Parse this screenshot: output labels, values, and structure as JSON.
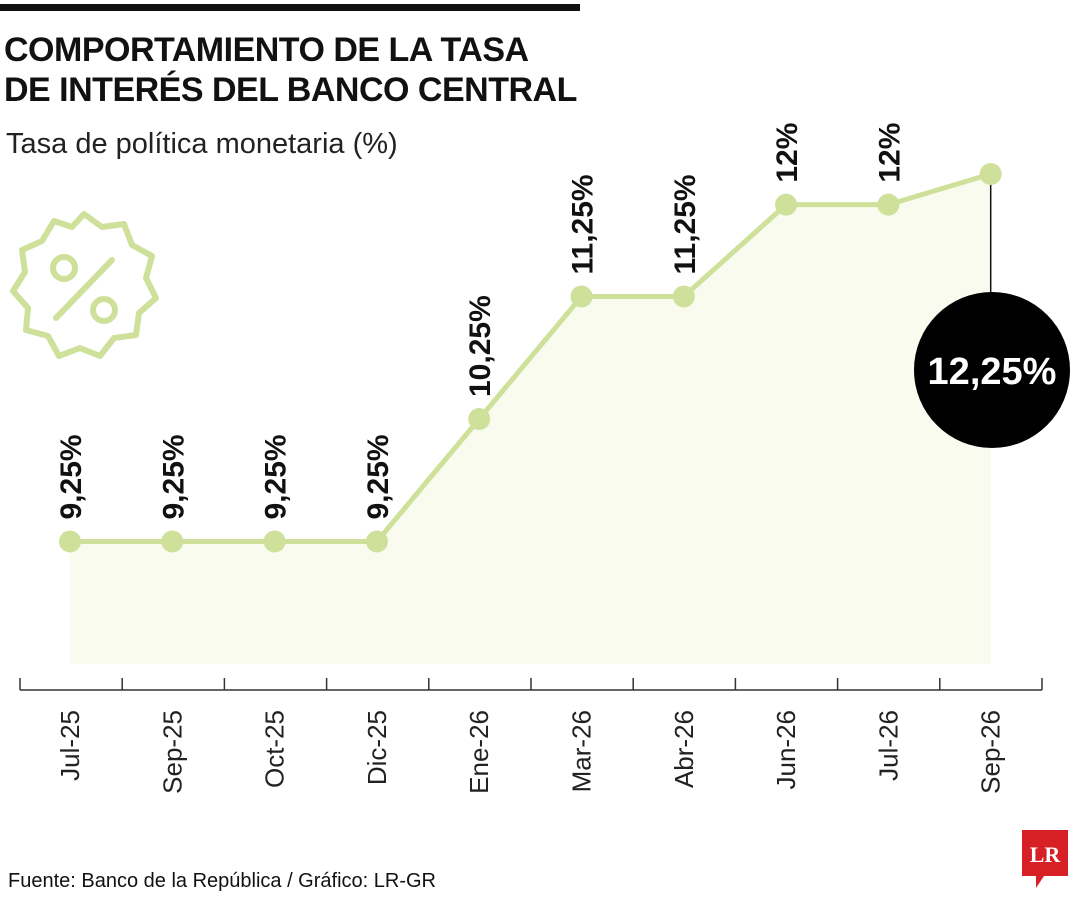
{
  "header": {
    "title_line1": "COMPORTAMIENTO DE LA TASA",
    "title_line2": "DE INTERÉS DEL BANCO CENTRAL",
    "subtitle": "Tasa de política monetaria (%)"
  },
  "icons": {
    "badge": "percent-badge-icon",
    "logo": "lr-logo"
  },
  "colors": {
    "line": "#cfe09a",
    "fill": "#f8fbed",
    "highlight": "#000000",
    "text": "#111111",
    "logo": "#d71f26"
  },
  "chart_data": {
    "type": "line",
    "title": "COMPORTAMIENTO DE LA TASA DE INTERÉS DEL BANCO CENTRAL",
    "ylabel": "Tasa de política monetaria (%)",
    "categories": [
      "Jul-25",
      "Sep-25",
      "Oct-25",
      "Dic-25",
      "Ene-26",
      "Mar-26",
      "Abr-26",
      "Jun-26",
      "Jul-26",
      "Sep-26"
    ],
    "values": [
      9.25,
      9.25,
      9.25,
      9.25,
      10.25,
      11.25,
      11.25,
      12,
      12,
      12.25
    ],
    "data_labels": [
      "9,25%",
      "9,25%",
      "9,25%",
      "9,25%",
      "10,25%",
      "11,25%",
      "11,25%",
      "12%",
      "12%",
      "12,25%"
    ],
    "highlight_index": 9,
    "ylim": [
      8.25,
      12.25
    ],
    "grid": false,
    "legend": "none"
  },
  "footer": {
    "source": "Fuente: Banco de la República / Gráfico: LR-GR",
    "logo_text": "LR"
  }
}
